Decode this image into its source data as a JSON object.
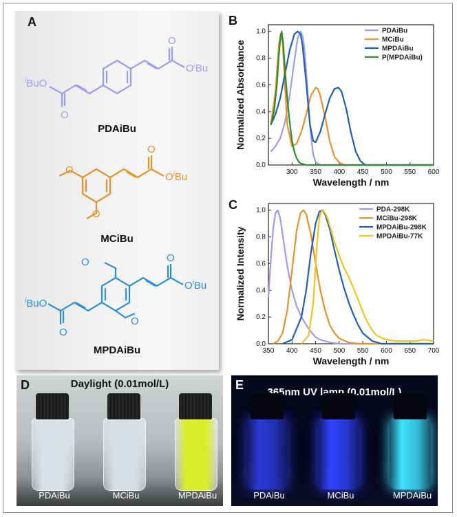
{
  "panels": {
    "A": "A",
    "B": "B",
    "C": "C",
    "D": "D",
    "E": "E"
  },
  "structures": {
    "pdaibu": {
      "name": "PDAiBu",
      "color": "#9a9cf0",
      "ester_left": "BuO",
      "ester_left_sup": "i",
      "ester_right": "O",
      "ester_right_sup": "i",
      "ester_right_tail": "Bu",
      "carbonyl": "O"
    },
    "mcibu": {
      "name": "MCiBu",
      "color": "#e8912a",
      "ester_right": "O",
      "ester_right_sup": "i",
      "ester_right_tail": "Bu",
      "carbonyl": "O"
    },
    "mpdaibu": {
      "name": "MPDAiBu",
      "color": "#2a8fd8",
      "ester_left": "BuO",
      "ester_left_sup": "i",
      "ester_right": "O",
      "ester_right_sup": "i",
      "ester_right_tail": "Bu",
      "carbonyl": "O"
    }
  },
  "chart_data": [
    {
      "type": "line",
      "xlabel": "Wavelength / nm",
      "ylabel": "Normalized Absorbance",
      "xlim": [
        250,
        600
      ],
      "ylim": [
        0,
        1.05
      ],
      "xticks": [
        300,
        350,
        400,
        450,
        500,
        550,
        600
      ],
      "yticks": [
        0.0,
        0.2,
        0.4,
        0.6,
        0.8,
        1.0
      ],
      "legend_position": "top-right",
      "series": [
        {
          "name": "PDAiBu",
          "color": "#9a9cf0",
          "x": [
            255,
            265,
            275,
            285,
            295,
            305,
            312,
            318,
            322,
            326,
            330,
            335,
            340,
            345,
            350,
            360,
            380,
            400,
            600
          ],
          "y": [
            0.1,
            0.14,
            0.2,
            0.32,
            0.52,
            0.78,
            0.95,
            1.0,
            0.97,
            0.88,
            0.7,
            0.45,
            0.22,
            0.08,
            0.02,
            0.0,
            0.0,
            0.0,
            0.0
          ]
        },
        {
          "name": "MCiBu",
          "color": "#e8912a",
          "x": [
            255,
            265,
            272,
            276,
            280,
            285,
            290,
            300,
            310,
            320,
            330,
            340,
            350,
            355,
            360,
            370,
            380,
            390,
            400,
            410,
            600
          ],
          "y": [
            0.3,
            0.55,
            0.9,
            0.98,
            0.92,
            0.6,
            0.3,
            0.14,
            0.16,
            0.25,
            0.38,
            0.52,
            0.58,
            0.57,
            0.52,
            0.36,
            0.18,
            0.06,
            0.02,
            0.0,
            0.0
          ]
        },
        {
          "name": "MPDAiBu",
          "color": "#1f5fb3",
          "x": [
            255,
            265,
            275,
            285,
            295,
            305,
            312,
            318,
            322,
            330,
            338,
            345,
            350,
            360,
            370,
            380,
            390,
            398,
            405,
            415,
            425,
            435,
            445,
            455,
            600
          ],
          "y": [
            0.3,
            0.38,
            0.5,
            0.68,
            0.86,
            0.98,
            1.0,
            0.98,
            0.9,
            0.62,
            0.3,
            0.18,
            0.17,
            0.25,
            0.38,
            0.5,
            0.57,
            0.58,
            0.55,
            0.42,
            0.24,
            0.1,
            0.03,
            0.0,
            0.0
          ]
        },
        {
          "name": "P(MPDAiBu)",
          "color": "#2e8b2e",
          "x": [
            255,
            262,
            268,
            272,
            276,
            278,
            281,
            285,
            290,
            295,
            300,
            305,
            310,
            315,
            320,
            330,
            600
          ],
          "y": [
            0.3,
            0.4,
            0.6,
            0.82,
            0.97,
            1.0,
            0.92,
            0.72,
            0.5,
            0.32,
            0.18,
            0.1,
            0.05,
            0.02,
            0.01,
            0.0,
            0.0
          ]
        }
      ]
    },
    {
      "type": "line",
      "xlabel": "Wavelength / nm",
      "ylabel": "Normalized Intensity",
      "xlim": [
        350,
        700
      ],
      "ylim": [
        0,
        1.05
      ],
      "xticks": [
        350,
        400,
        450,
        500,
        550,
        600,
        650,
        700
      ],
      "yticks": [
        0.0,
        0.2,
        0.4,
        0.6,
        0.8,
        1.0
      ],
      "legend_position": "top-right",
      "series": [
        {
          "name": "PDA-298K",
          "color": "#9a9cf0",
          "x": [
            350,
            355,
            360,
            365,
            370,
            375,
            380,
            390,
            400,
            410,
            420,
            430,
            440,
            450,
            460,
            480,
            500,
            700
          ],
          "y": [
            0.35,
            0.62,
            0.86,
            0.98,
            1.0,
            0.94,
            0.82,
            0.58,
            0.4,
            0.28,
            0.2,
            0.14,
            0.09,
            0.05,
            0.03,
            0.01,
            0.0,
            0.0
          ]
        },
        {
          "name": "MCiBu-298K",
          "color": "#e8912a",
          "x": [
            360,
            370,
            380,
            390,
            400,
            410,
            418,
            424,
            430,
            440,
            450,
            460,
            470,
            480,
            490,
            500,
            520,
            540,
            560,
            700
          ],
          "y": [
            0.0,
            0.02,
            0.08,
            0.25,
            0.55,
            0.85,
            0.98,
            1.0,
            0.97,
            0.82,
            0.6,
            0.4,
            0.25,
            0.14,
            0.08,
            0.04,
            0.01,
            0.0,
            0.0,
            0.0
          ]
        },
        {
          "name": "MPDAiBu-298K",
          "color": "#1f5fb3",
          "x": [
            380,
            400,
            420,
            430,
            440,
            450,
            458,
            464,
            470,
            480,
            490,
            500,
            510,
            520,
            530,
            540,
            550,
            560,
            570,
            590,
            610,
            700
          ],
          "y": [
            0.0,
            0.03,
            0.2,
            0.4,
            0.68,
            0.9,
            0.99,
            1.0,
            0.97,
            0.86,
            0.7,
            0.55,
            0.42,
            0.31,
            0.22,
            0.14,
            0.08,
            0.05,
            0.02,
            0.0,
            0.0,
            0.0
          ]
        },
        {
          "name": "MPDAiBu-77K",
          "color": "#f0c419",
          "x": [
            420,
            435,
            445,
            452,
            458,
            464,
            470,
            476,
            482,
            490,
            500,
            510,
            520,
            530,
            540,
            550,
            560,
            570,
            580,
            600,
            620,
            640,
            660,
            680,
            700
          ],
          "y": [
            0.0,
            0.06,
            0.3,
            0.7,
            0.95,
            1.0,
            0.98,
            0.93,
            0.86,
            0.76,
            0.66,
            0.57,
            0.5,
            0.42,
            0.33,
            0.24,
            0.16,
            0.1,
            0.06,
            0.03,
            0.02,
            0.02,
            0.02,
            0.03,
            0.02
          ]
        }
      ]
    }
  ],
  "photoD": {
    "title": "Daylight (0.01mol/L)",
    "vials": [
      {
        "label": "PDAiBu",
        "liquid": "#d9e1e6"
      },
      {
        "label": "MCiBu",
        "liquid": "#d7dee3"
      },
      {
        "label": "MPDAiBu",
        "liquid": "#d8ee2a"
      }
    ]
  },
  "photoE": {
    "title": "365nm UV lamp (0.01mol/L)",
    "vials": [
      {
        "label": "PDAiBu",
        "liquid": "#2a3bd8"
      },
      {
        "label": "MCiBu",
        "liquid": "#2f44ff"
      },
      {
        "label": "MPDAiBu",
        "liquid": "#3fe3ff"
      }
    ]
  }
}
